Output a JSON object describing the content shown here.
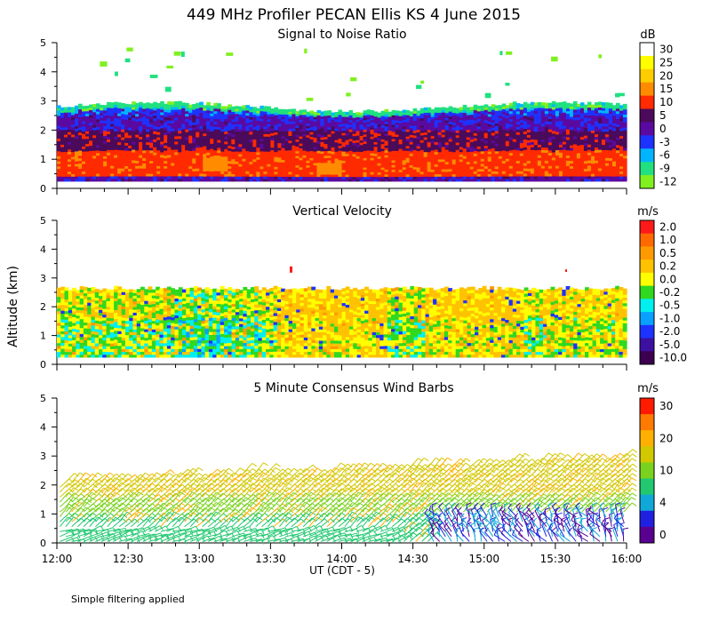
{
  "figure": {
    "title": "449 MHz Profiler PECAN Ellis KS  4 June 2015",
    "ylabel": "Altitude (km)",
    "xlabel": "UT  (CDT - 5)",
    "x_ticks": [
      "12:00",
      "12:30",
      "13:00",
      "13:30",
      "14:00",
      "14:30",
      "15:00",
      "15:30",
      "16:00"
    ],
    "y_ticks": [
      "0",
      "1",
      "2",
      "3",
      "4",
      "5"
    ],
    "footnote": "Simple filtering applied"
  },
  "chart_data": [
    {
      "type": "heatmap",
      "title": "Signal to Noise Ratio",
      "units": "dB",
      "x_range": [
        "12:00",
        "16:00"
      ],
      "ylim": [
        0,
        5
      ],
      "colorbar": {
        "labels": [
          "30",
          "25",
          "20",
          "15",
          "10",
          "5",
          "0",
          "-3",
          "-6",
          "-9",
          "-12"
        ],
        "colors": [
          "#ffffff",
          "#ffff00",
          "#ffcc00",
          "#ff8c00",
          "#ff2a00",
          "#4b0a5a",
          "#5a0aa0",
          "#1e32ff",
          "#00b4ff",
          "#20e080",
          "#80f020"
        ]
      },
      "layers": [
        {
          "from_km": 0.2,
          "to_km": 0.4,
          "level_db": 0
        },
        {
          "from_km": 0.4,
          "to_km": 1.3,
          "level_db": 10
        },
        {
          "from_km": 1.3,
          "to_km": 2.0,
          "level_db": 5
        },
        {
          "from_km": 2.0,
          "to_km": 2.5,
          "level_db": 0
        },
        {
          "from_km": 2.5,
          "to_km": 2.75,
          "level_db": -3
        },
        {
          "from_km": 2.75,
          "to_km": 2.9,
          "level_db": -9
        }
      ]
    },
    {
      "type": "heatmap",
      "title": "Vertical Velocity",
      "units": "m/s",
      "x_range": [
        "12:00",
        "16:00"
      ],
      "ylim": [
        0,
        5
      ],
      "echo_top_km": 2.8,
      "colorbar": {
        "labels": [
          "2.0",
          "1.0",
          "0.5",
          "0.2",
          "0.0",
          "-0.2",
          "-0.5",
          "-1.0",
          "-2.0",
          "-5.0",
          "-10.0"
        ],
        "colors": [
          "#ff1a1a",
          "#ff6a00",
          "#ff9a00",
          "#ffc200",
          "#ffff00",
          "#30d820",
          "#00f0f0",
          "#0aa0ff",
          "#1e32ff",
          "#3c10a0",
          "#3c0050"
        ]
      }
    },
    {
      "type": "wind_barbs",
      "title": "5 Minute Consensus Wind Barbs",
      "units": "m/s",
      "x_range": [
        "12:00",
        "16:00"
      ],
      "ylim": [
        0,
        5
      ],
      "colorbar": {
        "labels": [
          "30",
          "20",
          "10",
          "4",
          "0"
        ],
        "colors": [
          "#ff1a00",
          "#ff7a00",
          "#ffb000",
          "#d2c800",
          "#7ad21e",
          "#22c870",
          "#10a8d8",
          "#2020e0",
          "#5a0090"
        ]
      }
    }
  ]
}
